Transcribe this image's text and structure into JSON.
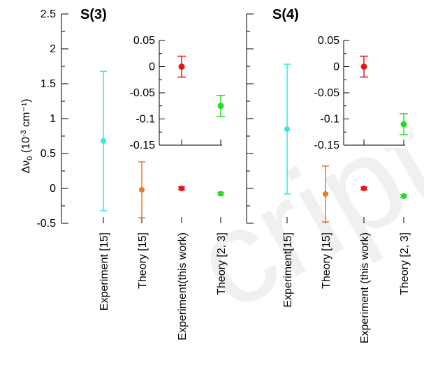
{
  "chart_data": {
    "type": "scatter",
    "ylabel": {
      "main": "Δν",
      "sub": "0",
      "unit_open": " (10",
      "unit_exp": "-3",
      "unit_close": " cm⁻¹)"
    },
    "categories": [
      "Experiment [15]",
      "Theory [15]",
      "Experiment(this work)",
      "Theory [2, 3]"
    ],
    "categories_right": [
      "Experiment[15]",
      "Theory [15]",
      "Experiment (this work)",
      "Theory [2, 3]"
    ],
    "ylim": [
      -0.5,
      2.5
    ],
    "yticks": [
      -0.5,
      0,
      0.5,
      1,
      1.5,
      2,
      2.5
    ],
    "ytick_labels": [
      "-0.5",
      "0",
      "0.5",
      "1",
      "1.5",
      "2",
      "2.5"
    ],
    "colors": [
      "#33e5e5",
      "#ee7722",
      "#ee1111",
      "#22dd22"
    ],
    "panels": [
      {
        "title": "S(3)",
        "values": [
          0.68,
          -0.02,
          0.0,
          -0.075
        ],
        "errors": [
          1.0,
          0.4,
          0.02,
          0.02
        ],
        "inset": {
          "ylim": [
            -0.15,
            0.05
          ],
          "yticks": [
            -0.15,
            -0.1,
            -0.05,
            0,
            0.05
          ],
          "ytick_labels": [
            "-0.15",
            "-0.1",
            "-0.05",
            "0",
            "0.05"
          ],
          "values": [
            0.0,
            -0.075
          ],
          "errors": [
            0.02,
            0.02
          ]
        }
      },
      {
        "title": "S(4)",
        "values": [
          0.85,
          -0.08,
          0.0,
          -0.11
        ],
        "errors": [
          0.93,
          0.4,
          0.02,
          0.02
        ],
        "inset": {
          "ylim": [
            -0.15,
            0.05
          ],
          "yticks": [
            -0.15,
            -0.1,
            -0.05,
            0,
            0.05
          ],
          "ytick_labels": [
            "-0.15",
            "-0.1",
            "-0.05",
            "0",
            "0.05"
          ],
          "values": [
            0.0,
            -0.11
          ],
          "errors": [
            0.02,
            0.02
          ]
        }
      }
    ]
  }
}
